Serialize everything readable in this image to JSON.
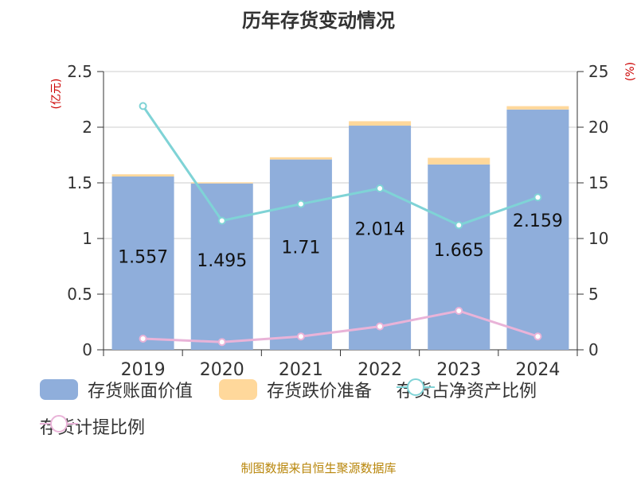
{
  "chart_data": {
    "type": "bar",
    "title": "历年存货变动情况",
    "categories": [
      "2019",
      "2020",
      "2021",
      "2022",
      "2023",
      "2024"
    ],
    "series": [
      {
        "name": "存货账面价值",
        "type": "bar",
        "axis": "left",
        "values": [
          1.557,
          1.495,
          1.71,
          2.014,
          1.665,
          2.159
        ],
        "color": "#8faedb"
      },
      {
        "name": "存货跌价准备",
        "type": "bar-stacked",
        "axis": "left",
        "values": [
          0.02,
          0.01,
          0.02,
          0.04,
          0.06,
          0.03
        ],
        "color": "#ffd89b"
      },
      {
        "name": "存货占净资产比例",
        "type": "line",
        "axis": "right",
        "values": [
          21.9,
          11.6,
          13.1,
          14.5,
          11.2,
          13.7
        ],
        "color": "#7fd3d6"
      },
      {
        "name": "存货计提比例",
        "type": "line",
        "axis": "right",
        "values": [
          1.0,
          0.7,
          1.2,
          2.1,
          3.5,
          1.2
        ],
        "color": "#e9b3d8"
      }
    ],
    "y_left": {
      "label": "(亿元)",
      "ylim": [
        0,
        2.5
      ],
      "ticks": [
        "0",
        "0.5",
        "1",
        "1.5",
        "2",
        "2.5"
      ]
    },
    "y_right": {
      "label": "(%)",
      "ylim": [
        0,
        25
      ],
      "ticks": [
        "0",
        "5",
        "10",
        "15",
        "20",
        "25"
      ]
    },
    "grid": true,
    "legend_position": "bottom"
  },
  "source": "制图数据来自恒生聚源数据库"
}
